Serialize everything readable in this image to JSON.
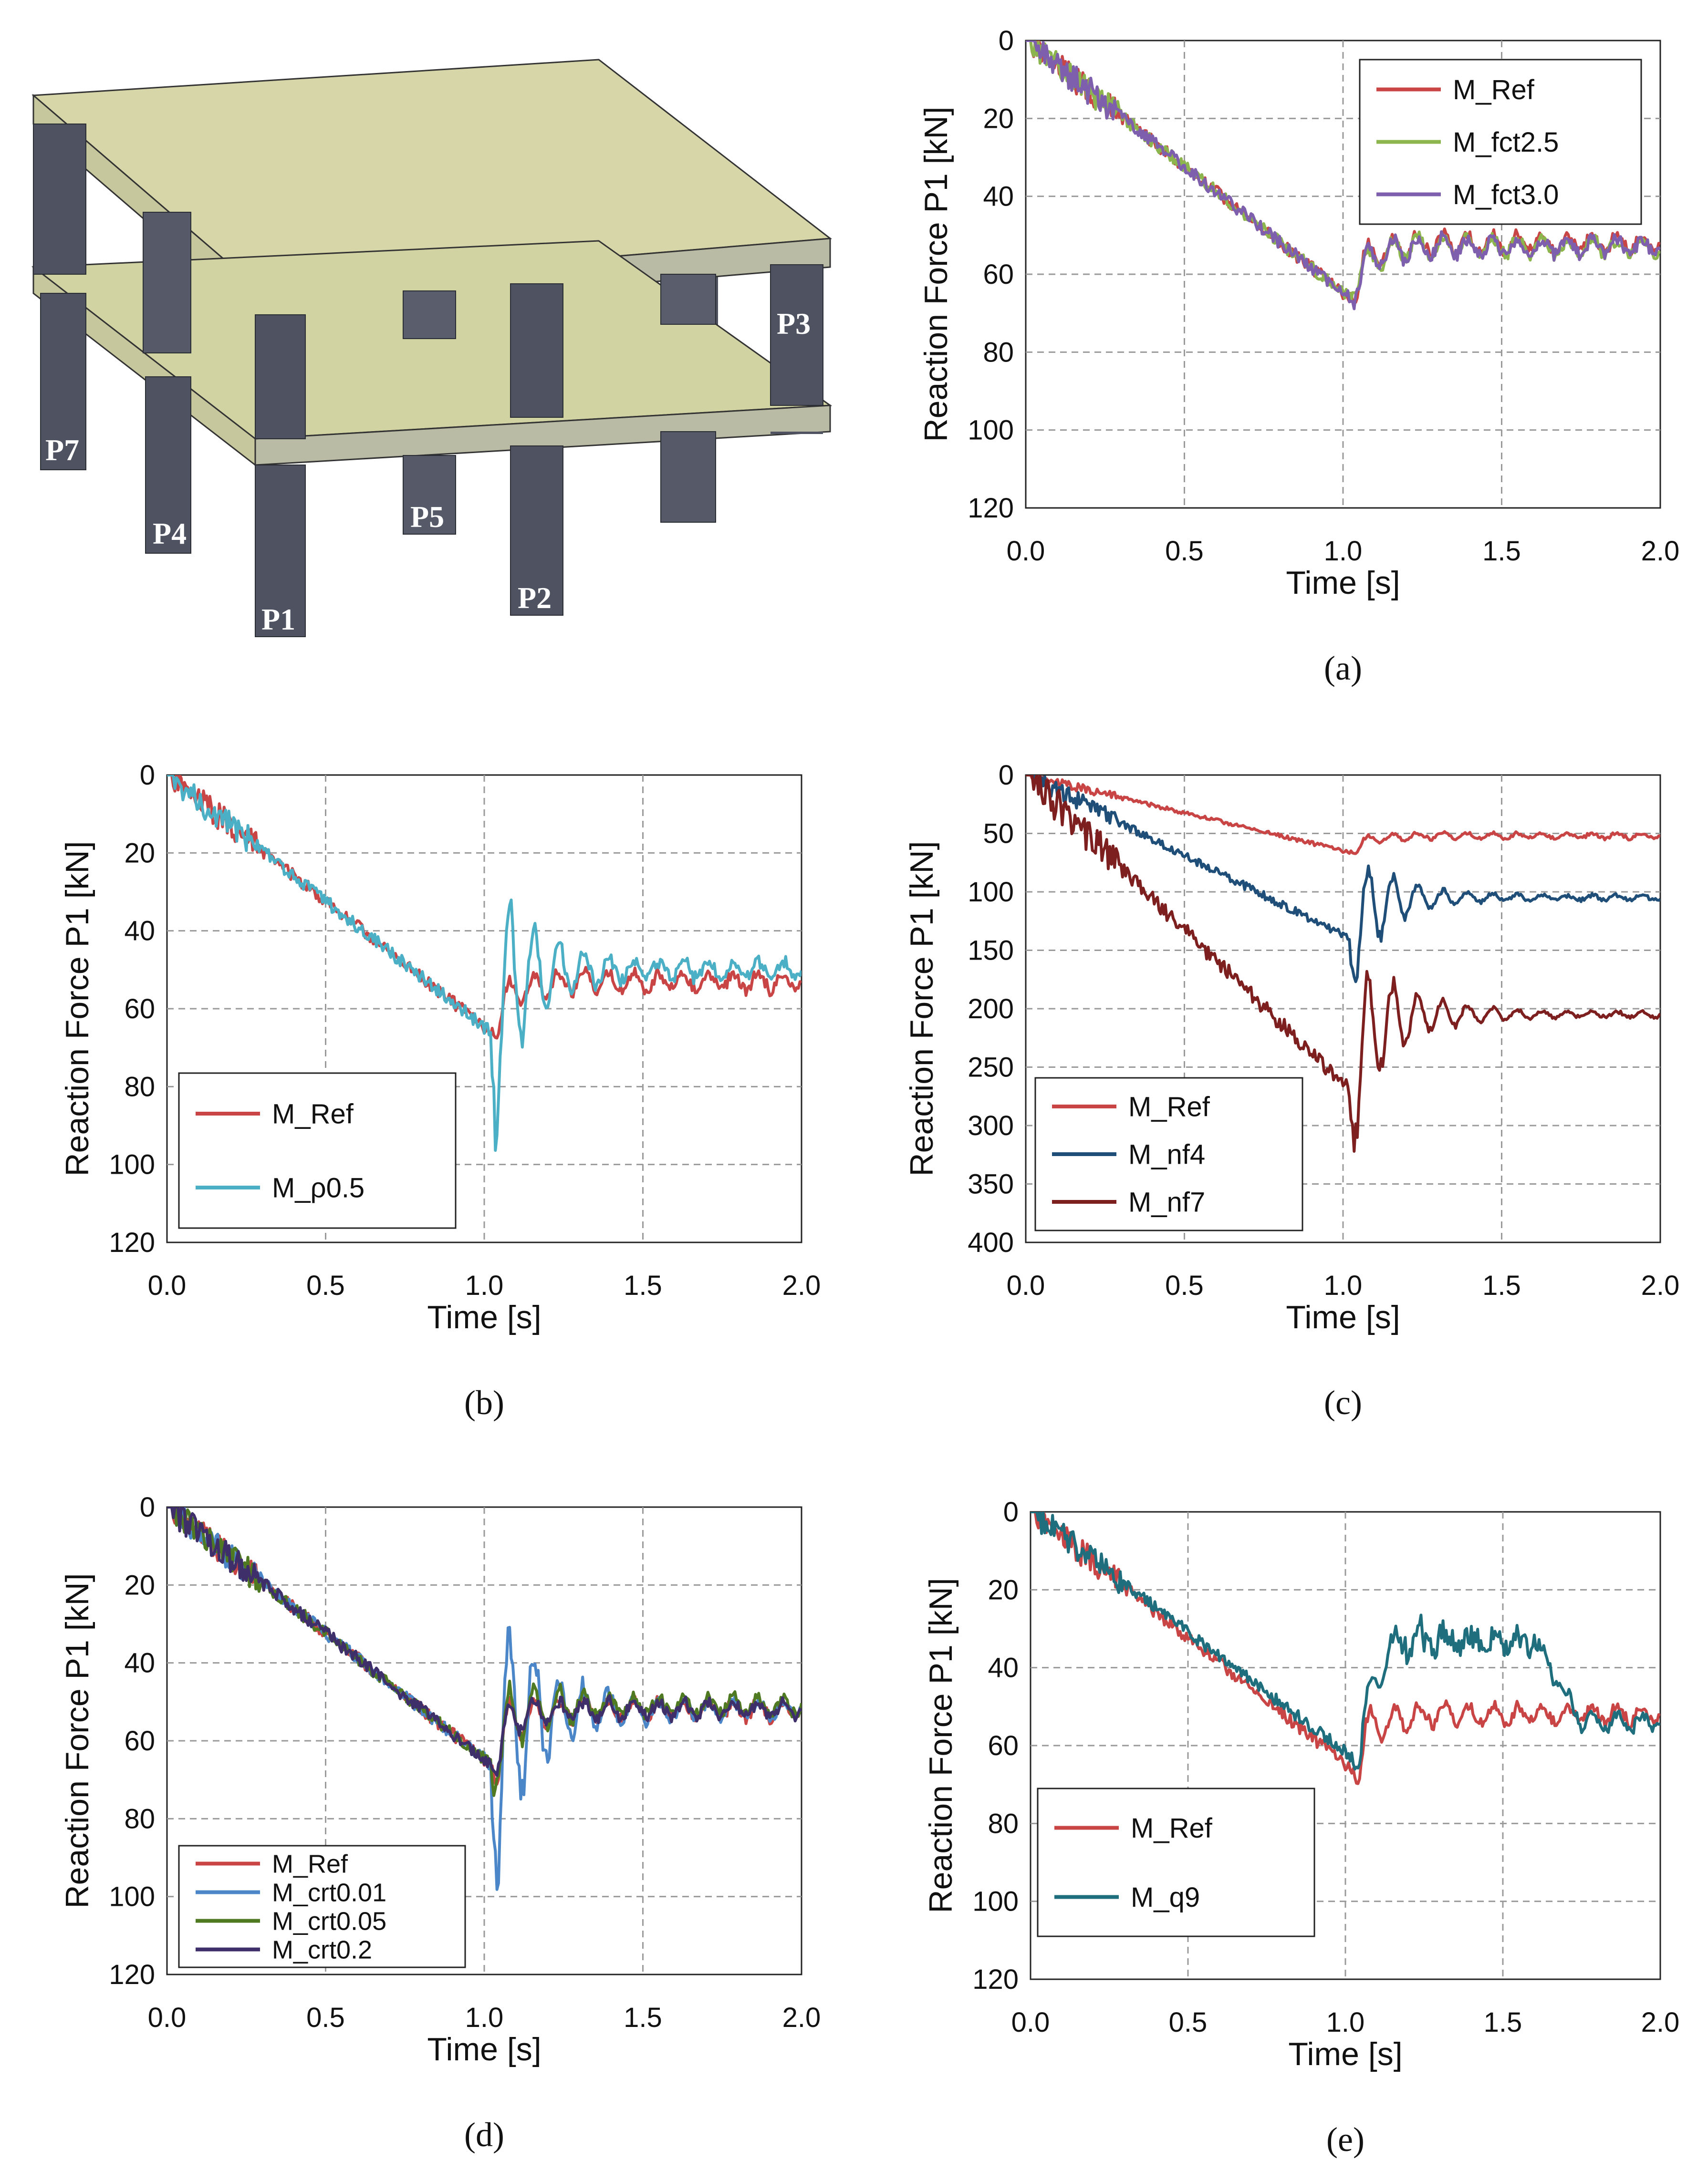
{
  "figure": {
    "model_image": {
      "pillar_labels": [
        "P7",
        "P4",
        "P5",
        "P1",
        "P2",
        "P3"
      ]
    },
    "colors": {
      "M_Ref": "#C94444",
      "M_fct2.5": "#8DB54E",
      "M_fct3.0": "#7E5FAE",
      "M_ρ0.5": "#4BAFC6",
      "M_nf4": "#1F4E79",
      "M_nf7": "#7E1F1F",
      "M_crt0.01": "#4A86C8",
      "M_crt0.05": "#4F7A21",
      "M_crt0.2": "#3E2F6B",
      "M_q9": "#1F6E7E",
      "slab": "#D6D6A9",
      "column": "#4F5361"
    }
  },
  "chart_data": [
    {
      "id": "a",
      "type": "line",
      "panel_label": "(a)",
      "xlabel": "Time [s]",
      "ylabel": "Reaction Force P1 [kN]",
      "xlim": [
        0,
        2
      ],
      "ylim": [
        0,
        120
      ],
      "y_inverted": true,
      "xticks": [
        "0.0",
        "0.5",
        "1.0",
        "1.5",
        "2.0"
      ],
      "yticks": [
        "0",
        "20",
        "40",
        "60",
        "80",
        "100",
        "120"
      ],
      "legend": {
        "position": "top-right"
      },
      "series": [
        {
          "name": "M_Ref",
          "color": "#C94444",
          "steady": 52,
          "peak": 66,
          "osc": 4,
          "decay": 0.15,
          "seed": 11
        },
        {
          "name": "M_fct2.5",
          "color": "#8DB54E",
          "steady": 53,
          "peak": 66,
          "osc": 3,
          "decay": 0.15,
          "seed": 23
        },
        {
          "name": "M_fct3.0",
          "color": "#7E5FAE",
          "steady": 53,
          "peak": 66,
          "osc": 3,
          "decay": 0.15,
          "seed": 37
        }
      ]
    },
    {
      "id": "b",
      "type": "line",
      "panel_label": "(b)",
      "xlabel": "Time [s]",
      "ylabel": "Reaction Force P1 [kN]",
      "xlim": [
        0,
        2
      ],
      "ylim": [
        0,
        120
      ],
      "y_inverted": true,
      "xticks": [
        "0.0",
        "0.5",
        "1.0",
        "1.5",
        "2.0"
      ],
      "yticks": [
        "0",
        "20",
        "40",
        "60",
        "80",
        "100",
        "120"
      ],
      "legend": {
        "position": "bottom-left"
      },
      "series": [
        {
          "name": "M_Ref",
          "color": "#C94444",
          "steady": 53,
          "peak": 66,
          "osc": 4,
          "decay": 0.15,
          "seed": 11
        },
        {
          "name": "M_ρ0.5",
          "color": "#4BAFC6",
          "steady": 50,
          "peak": 66,
          "osc": 40,
          "decay": 0.12,
          "seed": 51
        }
      ]
    },
    {
      "id": "c",
      "type": "line",
      "panel_label": "(c)",
      "xlabel": "Time [s]",
      "ylabel": "Reaction Force P1 [kN]",
      "xlim": [
        0,
        2
      ],
      "ylim": [
        0,
        400
      ],
      "y_inverted": true,
      "xticks": [
        "0.0",
        "0.5",
        "1.0",
        "1.5",
        "2.0"
      ],
      "yticks": [
        "0",
        "50",
        "100",
        "150",
        "200",
        "250",
        "300",
        "350",
        "400"
      ],
      "legend": {
        "position": "bottom-left"
      },
      "series": [
        {
          "name": "M_Ref",
          "color": "#C94444",
          "steady": 52,
          "peak": 66,
          "osc": 4,
          "decay": 0.15,
          "seed": 11
        },
        {
          "name": "M_nf4",
          "color": "#1F4E79",
          "steady": 105,
          "peak": 140,
          "osc": 70,
          "decay": 0.12,
          "seed": 67
        },
        {
          "name": "M_nf7",
          "color": "#7E1F1F",
          "steady": 205,
          "peak": 270,
          "osc": 90,
          "decay": 0.15,
          "seed": 79
        }
      ]
    },
    {
      "id": "d",
      "type": "line",
      "panel_label": "(d)",
      "xlabel": "Time [s]",
      "ylabel": "Reaction Force P1 [kN]",
      "xlim": [
        0,
        2
      ],
      "ylim": [
        0,
        120
      ],
      "y_inverted": true,
      "xticks": [
        "0.0",
        "0.5",
        "1.0",
        "1.5",
        "2.0"
      ],
      "yticks": [
        "0",
        "20",
        "40",
        "60",
        "80",
        "100",
        "120"
      ],
      "legend": {
        "position": "bottom-left"
      },
      "series": [
        {
          "name": "M_Ref",
          "color": "#C94444",
          "steady": 52,
          "peak": 66,
          "osc": 10,
          "decay": 0.1,
          "seed": 11
        },
        {
          "name": "M_crt0.01",
          "color": "#4A86C8",
          "steady": 52,
          "peak": 66,
          "osc": 45,
          "decay": 0.14,
          "seed": 91
        },
        {
          "name": "M_crt0.05",
          "color": "#4F7A21",
          "steady": 51,
          "peak": 66,
          "osc": 14,
          "decay": 0.12,
          "seed": 101
        },
        {
          "name": "M_crt0.2",
          "color": "#3E2F6B",
          "steady": 52,
          "peak": 66,
          "osc": 6,
          "decay": 0.1,
          "seed": 113
        }
      ]
    },
    {
      "id": "e",
      "type": "line",
      "panel_label": "(e)",
      "xlabel": "Time [s]",
      "ylabel": "Reaction Force P1 [kN]",
      "xlim": [
        0,
        2
      ],
      "ylim": [
        0,
        120
      ],
      "y_inverted": true,
      "xticks": [
        "0.0",
        "0.5",
        "1.0",
        "1.5",
        "2.0"
      ],
      "yticks": [
        "0",
        "20",
        "40",
        "60",
        "80",
        "100",
        "120"
      ],
      "legend": {
        "position": "bottom-left"
      },
      "series": [
        {
          "name": "M_Ref",
          "color": "#C94444",
          "steady": 52,
          "peak": 66,
          "osc": 8,
          "decay": 0.1,
          "seed": 11
        },
        {
          "name": "M_q9",
          "color": "#1F6E7E",
          "steady": 54,
          "peak": 63,
          "plateau": 33,
          "plateau_range": [
            1.15,
            1.6
          ],
          "osc": 6,
          "decay": 0.1,
          "seed": 127
        }
      ]
    }
  ]
}
